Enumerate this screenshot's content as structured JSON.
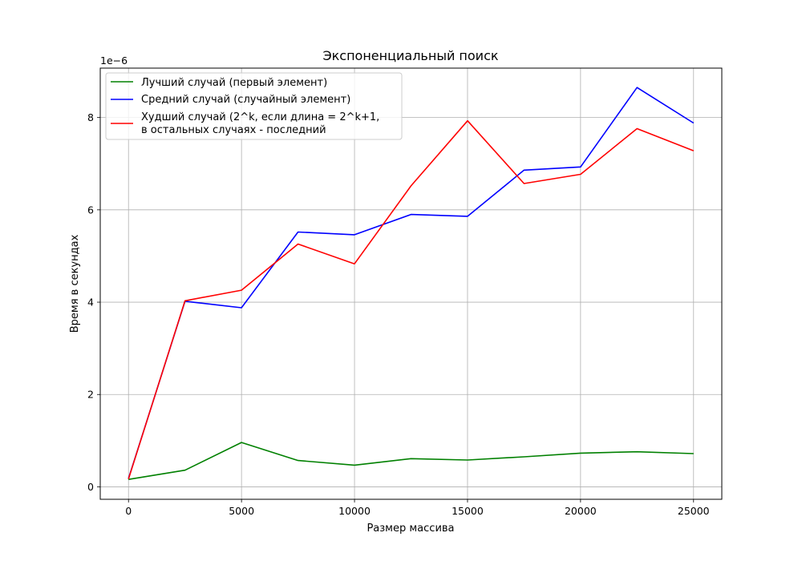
{
  "chart_data": {
    "type": "line",
    "title": "Экспоненциальный поиск",
    "xlabel": "Размер массива",
    "ylabel": "Время в секундах",
    "y_offset_label": "1e−6",
    "xlim": [
      -1250,
      26250
    ],
    "ylim": [
      -0.27,
      9.07
    ],
    "x_ticks": [
      0,
      5000,
      10000,
      15000,
      20000,
      25000
    ],
    "y_ticks": [
      0,
      2,
      4,
      6,
      8
    ],
    "grid": true,
    "legend_position": "top-left",
    "x": [
      0,
      2500,
      5000,
      7500,
      10000,
      12500,
      15000,
      17500,
      20000,
      22500,
      25000
    ],
    "series": [
      {
        "name": "Лучший случай (первый элемент)",
        "color": "#008000",
        "values": [
          0.16,
          0.36,
          0.96,
          0.57,
          0.47,
          0.61,
          0.58,
          0.65,
          0.73,
          0.76,
          0.72
        ]
      },
      {
        "name": "Средний случай (случайный элемент)",
        "color": "#0000ff",
        "values": [
          0.18,
          4.02,
          3.88,
          5.52,
          5.46,
          5.9,
          5.86,
          6.86,
          6.93,
          8.65,
          7.88
        ]
      },
      {
        "name": "Худший случай (2^k, если длина = 2^k+1,",
        "name_line2": "в остальных случаях - последний",
        "color": "#ff0000",
        "values": [
          0.17,
          4.03,
          4.26,
          5.26,
          4.83,
          6.52,
          7.93,
          6.57,
          6.77,
          7.76,
          7.28
        ]
      }
    ]
  }
}
